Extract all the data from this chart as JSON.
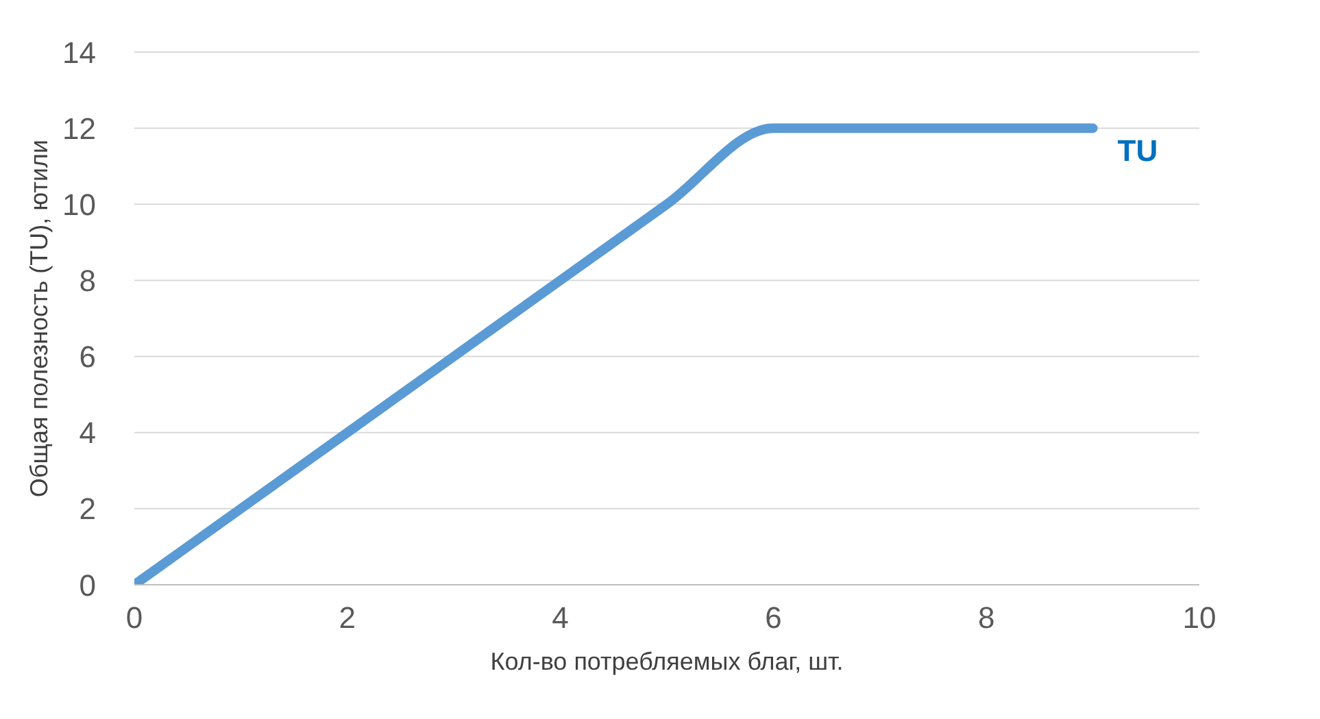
{
  "chart_data": {
    "type": "line",
    "xlabel": "Кол-во потребляемых благ, шт.",
    "ylabel": "Общая полезность (TU), ютили",
    "x": [
      0,
      1,
      2,
      3,
      4,
      5,
      6,
      7,
      8,
      9
    ],
    "series": [
      {
        "name": "TU",
        "color": "#5b9bd5",
        "values": [
          0,
          2,
          4,
          6,
          8,
          10,
          12,
          12,
          12,
          12
        ]
      }
    ],
    "xlim": [
      0,
      10
    ],
    "xticks": [
      0,
      2,
      4,
      6,
      8,
      10
    ],
    "ylim": [
      0,
      14
    ],
    "yticks": [
      0,
      2,
      4,
      6,
      8,
      10,
      12,
      14
    ],
    "grid": "y"
  }
}
